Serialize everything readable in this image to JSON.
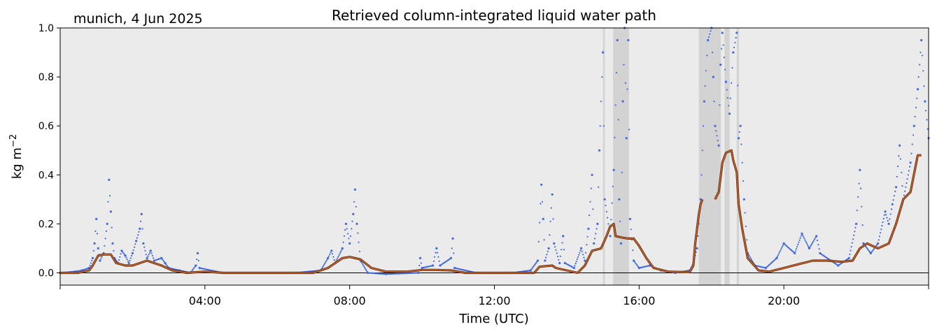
{
  "chart_data": {
    "type": "scatter",
    "title": "Retrieved column-integrated liquid water path",
    "site_label": "munich, 4 Jun 2025",
    "xlabel": "Time (UTC)",
    "ylabel": "kg m",
    "ylabel_sup": "−2",
    "xlim_hours": [
      0,
      24
    ],
    "ylim": [
      -0.05,
      1.0
    ],
    "x_ticks": [
      {
        "h": 4,
        "label": "04:00"
      },
      {
        "h": 8,
        "label": "08:00"
      },
      {
        "h": 12,
        "label": "12:00"
      },
      {
        "h": 16,
        "label": "16:00"
      },
      {
        "h": 20,
        "label": "20:00"
      }
    ],
    "y_ticks": [
      {
        "v": 0.0,
        "label": "0.0"
      },
      {
        "v": 0.2,
        "label": "0.2"
      },
      {
        "v": 0.4,
        "label": "0.4"
      },
      {
        "v": 0.6,
        "label": "0.6"
      },
      {
        "v": 0.8,
        "label": "0.8"
      },
      {
        "v": 1.0,
        "label": "1.0"
      }
    ],
    "grid": false,
    "colors": {
      "background": "#ebebeb",
      "flagged_shade": "#d3d3d3",
      "points": "#4169e1",
      "smoothed_line": "#c8642a",
      "zero_line": "#000000"
    },
    "flagged_intervals_hours": [
      [
        15.28,
        15.72
      ],
      [
        17.65,
        18.26
      ],
      [
        18.36,
        18.5
      ],
      [
        18.7,
        18.76
      ],
      [
        15.0,
        15.05
      ]
    ],
    "series": [
      {
        "kind": "points",
        "points": [
          [
            0.0,
            0.0
          ],
          [
            0.4,
            0.005
          ],
          [
            0.6,
            0.01
          ],
          [
            0.8,
            0.02
          ],
          [
            0.9,
            0.06
          ],
          [
            0.95,
            0.12
          ],
          [
            1.0,
            0.22
          ],
          [
            1.05,
            0.1
          ],
          [
            1.1,
            0.05
          ],
          [
            1.2,
            0.08
          ],
          [
            1.3,
            0.2
          ],
          [
            1.35,
            0.38
          ],
          [
            1.4,
            0.25
          ],
          [
            1.45,
            0.12
          ],
          [
            1.5,
            0.06
          ],
          [
            1.6,
            0.04
          ],
          [
            1.7,
            0.09
          ],
          [
            1.8,
            0.07
          ],
          [
            1.9,
            0.04
          ],
          [
            2.0,
            0.08
          ],
          [
            2.1,
            0.13
          ],
          [
            2.2,
            0.18
          ],
          [
            2.25,
            0.24
          ],
          [
            2.3,
            0.12
          ],
          [
            2.4,
            0.06
          ],
          [
            2.5,
            0.09
          ],
          [
            2.6,
            0.05
          ],
          [
            2.8,
            0.06
          ],
          [
            2.9,
            0.04
          ],
          [
            3.0,
            0.02
          ],
          [
            3.3,
            0.01
          ],
          [
            3.6,
            0.0
          ],
          [
            3.75,
            0.03
          ],
          [
            3.8,
            0.08
          ],
          [
            3.85,
            0.02
          ],
          [
            4.5,
            0.0
          ],
          [
            5.5,
            0.0
          ],
          [
            6.5,
            0.0
          ],
          [
            7.2,
            0.01
          ],
          [
            7.4,
            0.06
          ],
          [
            7.5,
            0.09
          ],
          [
            7.6,
            0.04
          ],
          [
            7.8,
            0.1
          ],
          [
            7.9,
            0.2
          ],
          [
            8.0,
            0.12
          ],
          [
            8.1,
            0.24
          ],
          [
            8.15,
            0.34
          ],
          [
            8.2,
            0.2
          ],
          [
            8.3,
            0.05
          ],
          [
            8.5,
            0.0
          ],
          [
            9.0,
            -0.005
          ],
          [
            9.9,
            0.0
          ],
          [
            9.95,
            0.06
          ],
          [
            10.0,
            0.02
          ],
          [
            10.3,
            0.03
          ],
          [
            10.4,
            0.1
          ],
          [
            10.5,
            0.03
          ],
          [
            10.8,
            0.06
          ],
          [
            10.85,
            0.14
          ],
          [
            10.9,
            0.02
          ],
          [
            11.5,
            0.0
          ],
          [
            12.5,
            0.0
          ],
          [
            13.0,
            0.01
          ],
          [
            13.2,
            0.05
          ],
          [
            13.3,
            0.36
          ],
          [
            13.35,
            0.22
          ],
          [
            13.4,
            0.05
          ],
          [
            13.5,
            0.1
          ],
          [
            13.6,
            0.32
          ],
          [
            13.65,
            0.12
          ],
          [
            13.8,
            0.04
          ],
          [
            13.9,
            0.15
          ],
          [
            13.95,
            0.04
          ],
          [
            14.2,
            0.02
          ],
          [
            14.4,
            0.1
          ],
          [
            14.5,
            0.05
          ],
          [
            14.6,
            0.18
          ],
          [
            14.7,
            0.4
          ],
          [
            14.75,
            0.12
          ],
          [
            14.85,
            0.2
          ],
          [
            14.9,
            0.5
          ],
          [
            15.0,
            0.9
          ],
          [
            15.05,
            0.3
          ],
          [
            15.2,
            0.15
          ],
          [
            15.3,
            0.42
          ],
          [
            15.4,
            0.95
          ],
          [
            15.45,
            0.3
          ],
          [
            15.5,
            0.12
          ],
          [
            15.55,
            0.7
          ],
          [
            15.6,
            1.0
          ],
          [
            15.65,
            0.55
          ],
          [
            15.7,
            0.95
          ],
          [
            15.75,
            0.22
          ],
          [
            15.85,
            0.05
          ],
          [
            16.0,
            0.02
          ],
          [
            16.3,
            0.03
          ],
          [
            16.6,
            0.01
          ],
          [
            17.0,
            0.0
          ],
          [
            17.4,
            0.01
          ],
          [
            17.5,
            0.04
          ],
          [
            17.6,
            0.1
          ],
          [
            17.7,
            0.3
          ],
          [
            17.8,
            0.7
          ],
          [
            17.9,
            0.95
          ],
          [
            18.0,
            1.0
          ],
          [
            18.05,
            0.8
          ],
          [
            18.1,
            0.6
          ],
          [
            18.2,
            0.52
          ],
          [
            18.25,
            0.85
          ],
          [
            18.3,
            0.98
          ],
          [
            18.4,
            0.78
          ],
          [
            18.5,
            0.65
          ],
          [
            18.6,
            0.9
          ],
          [
            18.7,
            0.98
          ],
          [
            18.75,
            0.55
          ],
          [
            18.8,
            0.6
          ],
          [
            18.9,
            0.3
          ],
          [
            19.0,
            0.08
          ],
          [
            19.2,
            0.03
          ],
          [
            19.5,
            0.02
          ],
          [
            19.8,
            0.06
          ],
          [
            20.0,
            0.12
          ],
          [
            20.3,
            0.08
          ],
          [
            20.5,
            0.16
          ],
          [
            20.7,
            0.1
          ],
          [
            20.9,
            0.15
          ],
          [
            21.0,
            0.08
          ],
          [
            21.3,
            0.05
          ],
          [
            21.5,
            0.03
          ],
          [
            21.8,
            0.06
          ],
          [
            22.0,
            0.2
          ],
          [
            22.1,
            0.42
          ],
          [
            22.2,
            0.12
          ],
          [
            22.4,
            0.08
          ],
          [
            22.6,
            0.12
          ],
          [
            22.8,
            0.25
          ],
          [
            22.9,
            0.2
          ],
          [
            23.0,
            0.28
          ],
          [
            23.1,
            0.35
          ],
          [
            23.2,
            0.52
          ],
          [
            23.3,
            0.3
          ],
          [
            23.5,
            0.45
          ],
          [
            23.6,
            0.6
          ],
          [
            23.7,
            0.75
          ],
          [
            23.8,
            0.95
          ],
          [
            23.9,
            0.7
          ],
          [
            24.0,
            0.55
          ]
        ]
      },
      {
        "kind": "smoothed_line",
        "segments": [
          [
            [
              0.0,
              0.0
            ],
            [
              0.5,
              0.0
            ],
            [
              0.8,
              0.01
            ],
            [
              0.9,
              0.03
            ],
            [
              1.05,
              0.07
            ],
            [
              1.2,
              0.075
            ],
            [
              1.4,
              0.075
            ],
            [
              1.55,
              0.04
            ],
            [
              1.8,
              0.03
            ],
            [
              2.0,
              0.03
            ],
            [
              2.2,
              0.04
            ],
            [
              2.4,
              0.05
            ],
            [
              2.6,
              0.04
            ],
            [
              2.8,
              0.03
            ],
            [
              3.1,
              0.01
            ],
            [
              3.5,
              0.0
            ],
            [
              4.0,
              0.005
            ],
            [
              4.5,
              0.0
            ],
            [
              7.0,
              0.0
            ],
            [
              7.4,
              0.02
            ],
            [
              7.8,
              0.06
            ],
            [
              8.0,
              0.065
            ],
            [
              8.3,
              0.055
            ],
            [
              8.6,
              0.02
            ],
            [
              9.0,
              0.005
            ],
            [
              9.6,
              0.005
            ],
            [
              10.0,
              0.012
            ],
            [
              10.4,
              0.012
            ],
            [
              10.8,
              0.01
            ],
            [
              11.2,
              0.0
            ],
            [
              12.5,
              0.0
            ],
            [
              13.1,
              0.0
            ],
            [
              13.25,
              0.025
            ],
            [
              13.6,
              0.03
            ],
            [
              13.7,
              0.02
            ],
            [
              14.0,
              0.01
            ],
            [
              14.3,
              0.0
            ],
            [
              14.5,
              0.03
            ],
            [
              14.7,
              0.09
            ],
            [
              14.95,
              0.1
            ],
            [
              15.1,
              0.15
            ],
            [
              15.2,
              0.19
            ],
            [
              15.3,
              0.2
            ],
            [
              15.35,
              0.15
            ],
            [
              15.5,
              0.145
            ],
            [
              15.7,
              0.14
            ],
            [
              15.85,
              0.14
            ],
            [
              16.0,
              0.11
            ],
            [
              16.2,
              0.06
            ],
            [
              16.4,
              0.02
            ],
            [
              16.8,
              0.005
            ],
            [
              17.2,
              0.003
            ],
            [
              17.4,
              0.003
            ],
            [
              17.5,
              0.03
            ],
            [
              17.55,
              0.12
            ],
            [
              17.65,
              0.24
            ],
            [
              17.7,
              0.28
            ],
            [
              17.75,
              0.3
            ]
          ],
          [
            [
              18.1,
              0.3
            ],
            [
              18.2,
              0.33
            ],
            [
              18.3,
              0.45
            ],
            [
              18.4,
              0.49
            ],
            [
              18.55,
              0.5
            ],
            [
              18.6,
              0.46
            ],
            [
              18.7,
              0.41
            ],
            [
              18.75,
              0.28
            ],
            [
              18.85,
              0.18
            ],
            [
              19.0,
              0.06
            ],
            [
              19.3,
              0.01
            ],
            [
              19.6,
              0.005
            ],
            [
              20.0,
              0.02
            ],
            [
              20.4,
              0.035
            ],
            [
              20.8,
              0.05
            ],
            [
              21.2,
              0.05
            ],
            [
              21.6,
              0.045
            ],
            [
              21.9,
              0.05
            ],
            [
              22.1,
              0.1
            ],
            [
              22.3,
              0.12
            ],
            [
              22.6,
              0.1
            ],
            [
              22.9,
              0.12
            ],
            [
              23.1,
              0.2
            ],
            [
              23.3,
              0.3
            ],
            [
              23.5,
              0.33
            ],
            [
              23.7,
              0.48
            ],
            [
              23.8,
              0.48
            ]
          ]
        ]
      }
    ]
  }
}
